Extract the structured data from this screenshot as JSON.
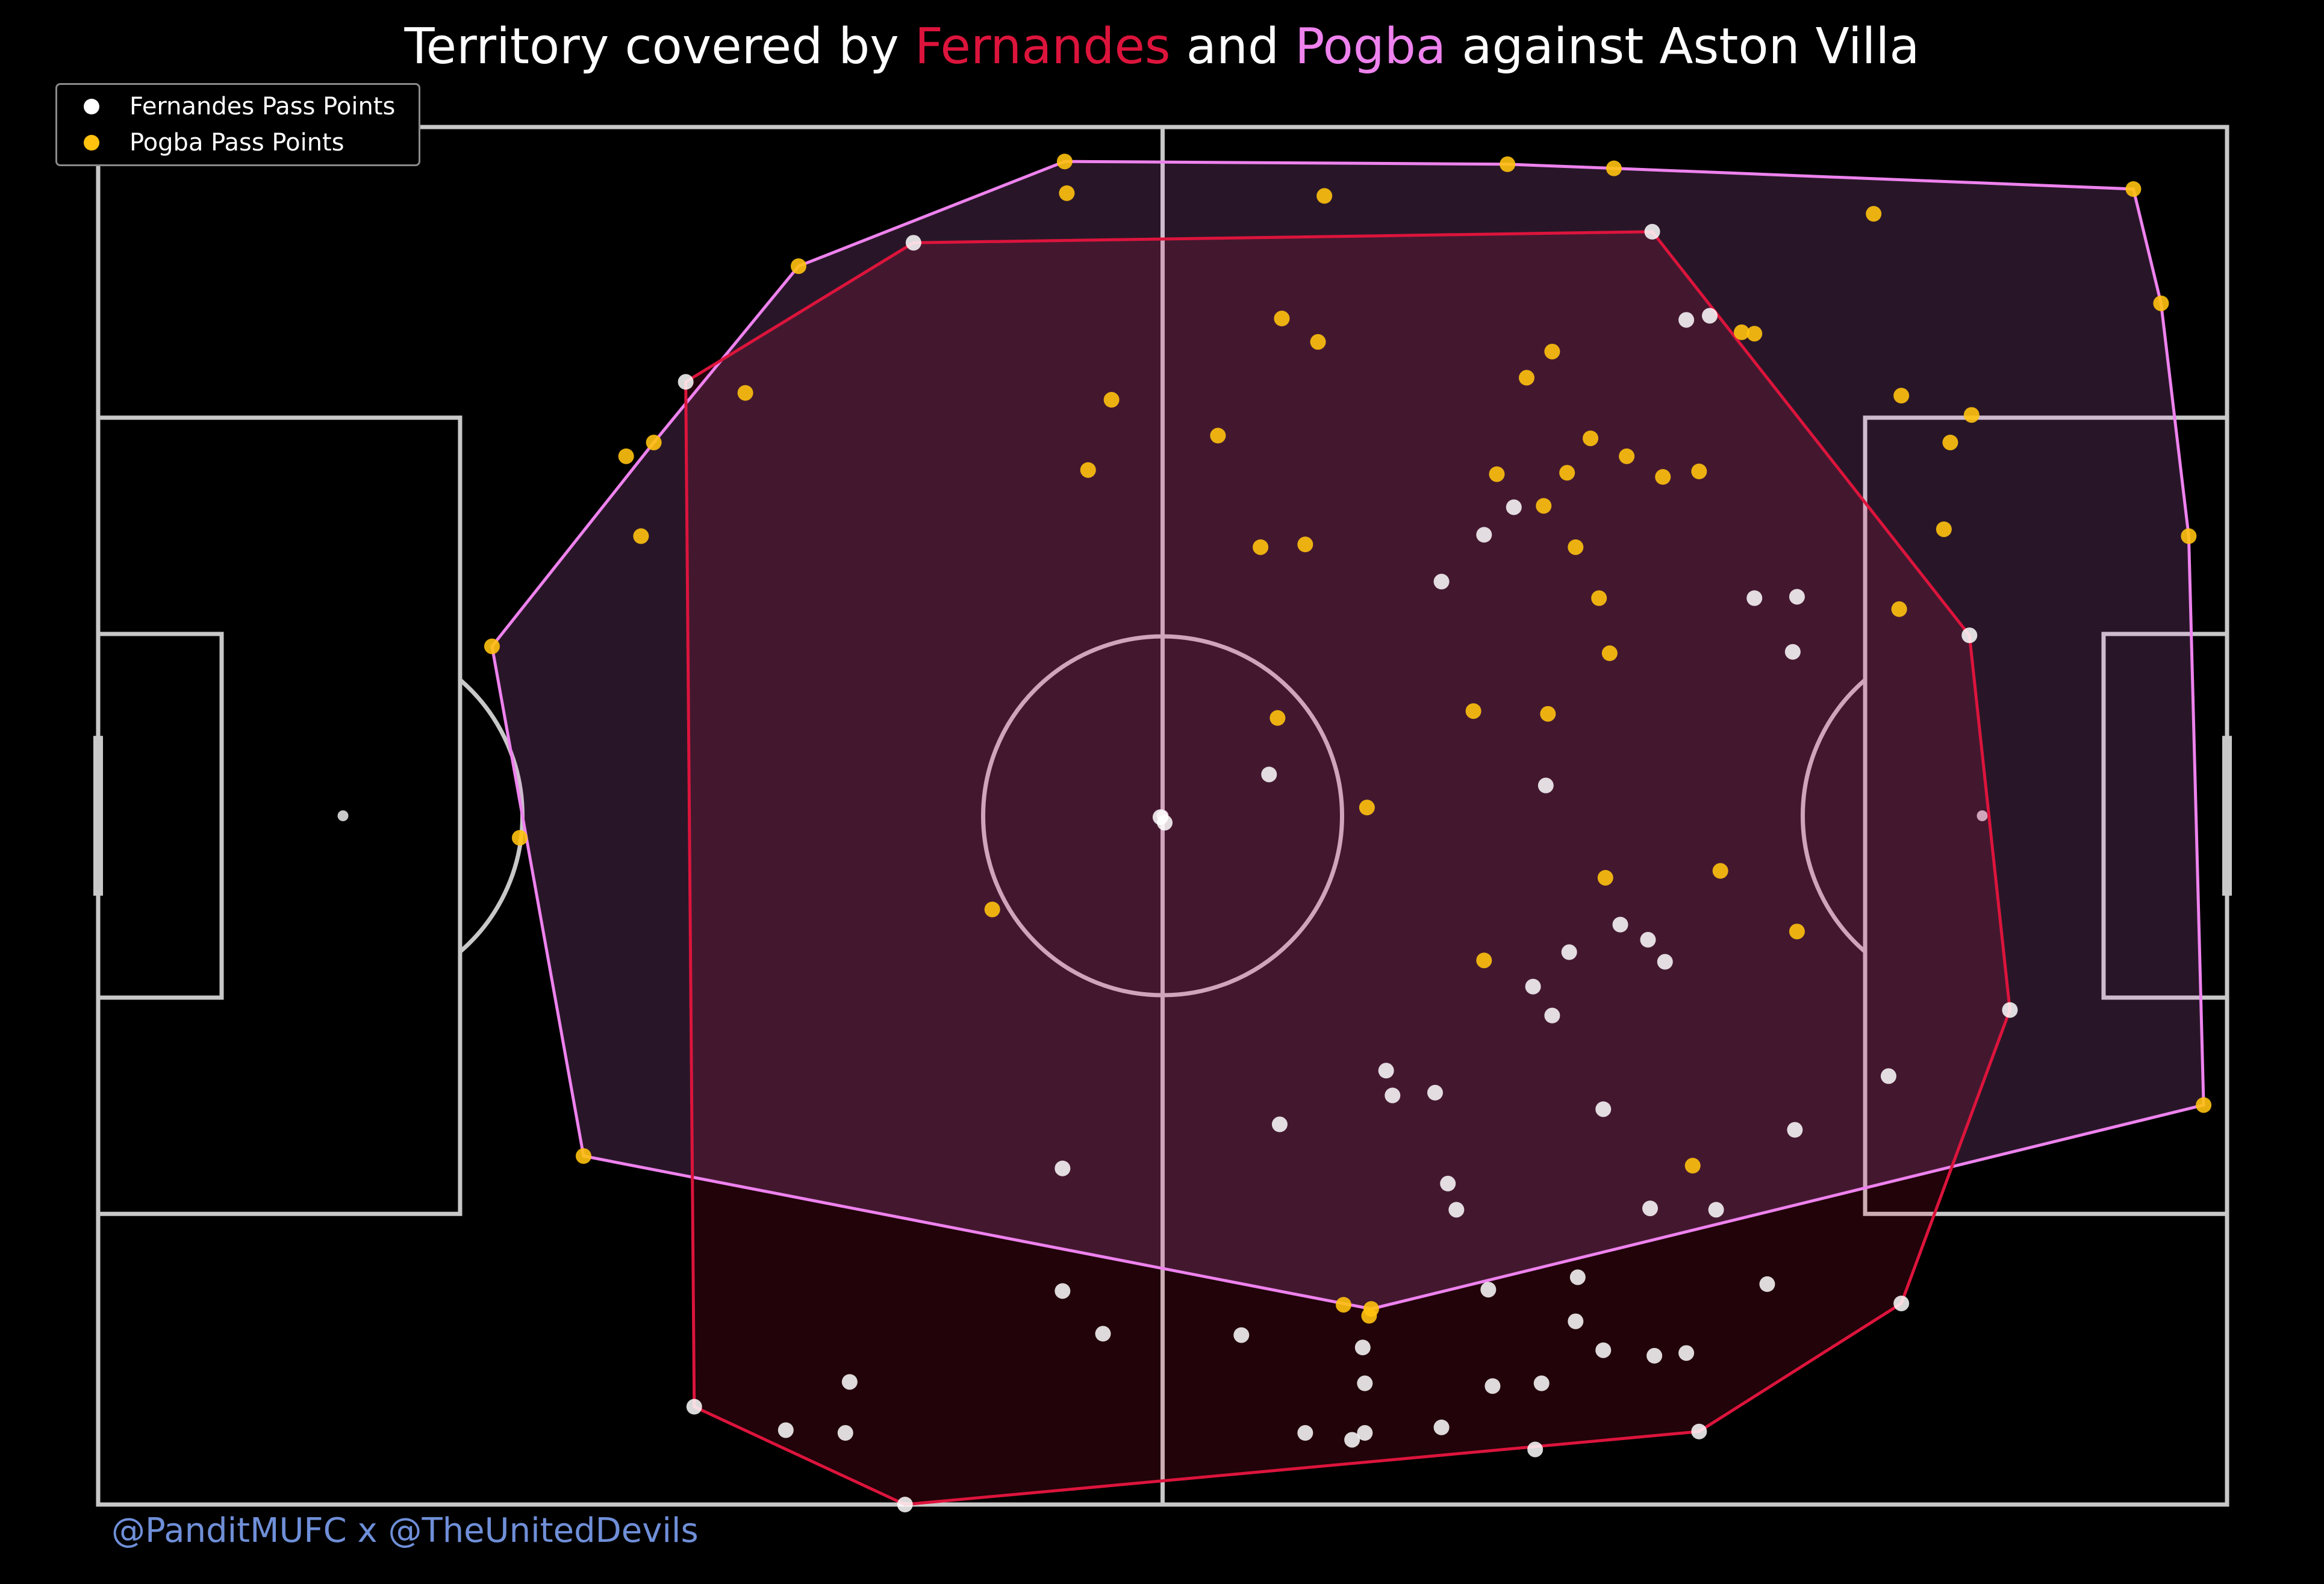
{
  "title": {
    "prefix": "Territory covered by ",
    "player1": "Fernandes",
    "middle": " and ",
    "player2": "Pogba",
    "suffix": " against Aston Villa"
  },
  "legend": {
    "fernandes_label": "Fernandes Pass Points",
    "pogba_label": "Pogba Pass Points"
  },
  "credit": "@PanditMUFC x @TheUnitedDevils",
  "colors": {
    "background": "#000000",
    "pitch_lines": "#c8c8c8",
    "fernandes_hull": "#dc143c",
    "pogba_hull": "#ee82ee",
    "fernandes_points": "#ffffff",
    "pogba_points": "#ffc20e"
  },
  "chart_data": {
    "type": "scatter",
    "pitch": "opta",
    "xlim": [
      0,
      100
    ],
    "ylim": [
      0,
      100
    ],
    "grid": false,
    "legend_position": "top-left",
    "series": [
      {
        "name": "Fernandes Pass Points",
        "color": "#ffffff",
        "hull": [
          [
            27.6,
            81.5
          ],
          [
            38.3,
            91.6
          ],
          [
            73.0,
            92.4
          ],
          [
            87.9,
            63.1
          ],
          [
            89.8,
            35.9
          ],
          [
            84.7,
            14.6
          ],
          [
            75.2,
            5.3
          ],
          [
            37.9,
            0.0
          ],
          [
            28.0,
            7.1
          ]
        ],
        "points": [
          [
            27.6,
            81.5
          ],
          [
            38.3,
            91.6
          ],
          [
            73.0,
            92.4
          ],
          [
            87.9,
            63.1
          ],
          [
            89.8,
            35.9
          ],
          [
            84.7,
            14.6
          ],
          [
            75.2,
            5.3
          ],
          [
            67.5,
            4.0
          ],
          [
            37.9,
            0.0
          ],
          [
            28.0,
            7.1
          ],
          [
            32.3,
            5.4
          ],
          [
            35.1,
            5.2
          ],
          [
            35.3,
            8.9
          ],
          [
            45.3,
            24.4
          ],
          [
            45.3,
            15.5
          ],
          [
            47.2,
            12.4
          ],
          [
            53.7,
            12.3
          ],
          [
            56.7,
            5.2
          ],
          [
            59.4,
            11.4
          ],
          [
            59.5,
            8.8
          ],
          [
            59.5,
            5.2
          ],
          [
            58.9,
            4.7
          ],
          [
            63.1,
            5.6
          ],
          [
            65.5,
            8.6
          ],
          [
            65.3,
            15.6
          ],
          [
            67.8,
            8.8
          ],
          [
            69.4,
            13.3
          ],
          [
            70.7,
            11.2
          ],
          [
            74.6,
            11.0
          ],
          [
            73.1,
            10.8
          ],
          [
            69.5,
            16.5
          ],
          [
            76.0,
            21.4
          ],
          [
            78.4,
            16.0
          ],
          [
            79.7,
            27.2
          ],
          [
            84.1,
            31.1
          ],
          [
            72.9,
            21.5
          ],
          [
            70.7,
            28.7
          ],
          [
            68.3,
            35.5
          ],
          [
            67.4,
            37.6
          ],
          [
            69.1,
            40.1
          ],
          [
            71.5,
            42.1
          ],
          [
            72.8,
            41.0
          ],
          [
            73.6,
            39.4
          ],
          [
            68.0,
            52.2
          ],
          [
            55.5,
            27.6
          ],
          [
            60.5,
            31.5
          ],
          [
            60.8,
            29.7
          ],
          [
            62.8,
            29.9
          ],
          [
            63.4,
            23.3
          ],
          [
            63.8,
            21.4
          ],
          [
            50.1,
            49.5
          ],
          [
            49.9,
            49.9
          ],
          [
            55.0,
            53.0
          ],
          [
            63.1,
            67.0
          ],
          [
            65.1,
            70.4
          ],
          [
            66.5,
            72.4
          ],
          [
            75.7,
            86.3
          ],
          [
            77.8,
            65.8
          ],
          [
            79.8,
            65.9
          ],
          [
            79.6,
            61.9
          ],
          [
            74.6,
            86.0
          ]
        ]
      },
      {
        "name": "Pogba Pass Points",
        "color": "#ffc20e",
        "hull": [
          [
            45.4,
            97.5
          ],
          [
            66.2,
            97.3
          ],
          [
            71.2,
            97.0
          ],
          [
            95.6,
            95.5
          ],
          [
            96.9,
            87.2
          ],
          [
            98.2,
            70.3
          ],
          [
            98.9,
            29.0
          ],
          [
            59.8,
            14.2
          ],
          [
            22.8,
            25.3
          ],
          [
            18.5,
            62.3
          ],
          [
            26.1,
            77.1
          ],
          [
            32.9,
            89.9
          ]
        ],
        "points": [
          [
            45.4,
            97.5
          ],
          [
            45.5,
            95.2
          ],
          [
            57.6,
            95.0
          ],
          [
            66.2,
            97.3
          ],
          [
            71.2,
            97.0
          ],
          [
            83.4,
            93.7
          ],
          [
            95.6,
            95.5
          ],
          [
            96.9,
            87.2
          ],
          [
            84.7,
            80.5
          ],
          [
            88.0,
            79.1
          ],
          [
            87.0,
            77.1
          ],
          [
            86.7,
            70.8
          ],
          [
            98.2,
            70.3
          ],
          [
            84.6,
            65.0
          ],
          [
            98.9,
            29.0
          ],
          [
            79.8,
            41.6
          ],
          [
            59.8,
            14.2
          ],
          [
            58.5,
            14.5
          ],
          [
            22.8,
            25.3
          ],
          [
            19.8,
            48.4
          ],
          [
            18.5,
            62.3
          ],
          [
            25.5,
            70.3
          ],
          [
            24.8,
            76.1
          ],
          [
            26.1,
            77.1
          ],
          [
            30.4,
            80.7
          ],
          [
            32.9,
            89.9
          ],
          [
            47.6,
            80.2
          ],
          [
            46.5,
            75.1
          ],
          [
            42.0,
            43.2
          ],
          [
            59.6,
            50.6
          ],
          [
            55.4,
            57.1
          ],
          [
            56.7,
            69.7
          ],
          [
            54.6,
            69.5
          ],
          [
            52.6,
            77.6
          ],
          [
            57.3,
            84.4
          ],
          [
            55.6,
            86.1
          ],
          [
            67.1,
            81.8
          ],
          [
            69.0,
            74.9
          ],
          [
            67.9,
            72.5
          ],
          [
            71.8,
            76.1
          ],
          [
            70.1,
            77.4
          ],
          [
            73.5,
            74.6
          ],
          [
            75.2,
            75.0
          ],
          [
            77.2,
            85.1
          ],
          [
            77.8,
            85.0
          ],
          [
            64.6,
            57.6
          ],
          [
            65.7,
            74.8
          ],
          [
            69.4,
            69.5
          ],
          [
            70.5,
            65.8
          ],
          [
            71.0,
            61.8
          ],
          [
            68.1,
            57.4
          ],
          [
            68.3,
            83.7
          ],
          [
            76.2,
            46.0
          ],
          [
            65.1,
            39.5
          ],
          [
            70.8,
            45.5
          ],
          [
            74.9,
            24.6
          ],
          [
            59.7,
            13.7
          ]
        ]
      }
    ]
  }
}
